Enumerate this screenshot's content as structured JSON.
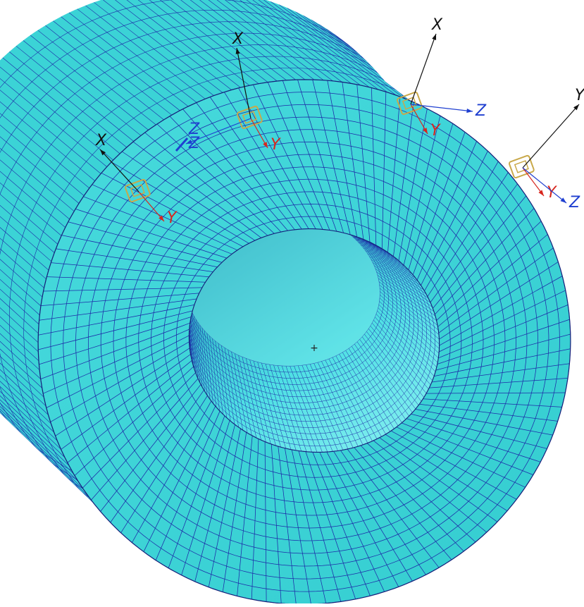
{
  "viewport": {
    "center_marker_glyph": "+"
  },
  "colors": {
    "background": "#ffffff",
    "mesh_fill": "#3bd3d6",
    "mesh_fill_light": "#7ceef0",
    "mesh_fill_shadow": "#1aa7b6",
    "mesh_lines": "#1d2aa8",
    "axis_x": "#111111",
    "axis_y": "#d7261e",
    "axis_z": "#1f3fd0",
    "node_marker": "#c9a94a"
  },
  "model": {
    "element_type": "quad-shell",
    "parts": [
      "rear-cylinder",
      "front-flange",
      "bore"
    ]
  },
  "coordinate_systems": [
    {
      "id": "cs1",
      "labels": {
        "x": "X",
        "y": "Y",
        "z": "Z"
      }
    },
    {
      "id": "cs2",
      "labels": {
        "x": "X",
        "y": "Y",
        "z": "Z"
      }
    },
    {
      "id": "cs3",
      "labels": {
        "x": "X",
        "y": "Y",
        "z": "Z"
      }
    },
    {
      "id": "cs4",
      "labels": {
        "x": "Y",
        "y": "Y",
        "z": "Z"
      }
    }
  ]
}
